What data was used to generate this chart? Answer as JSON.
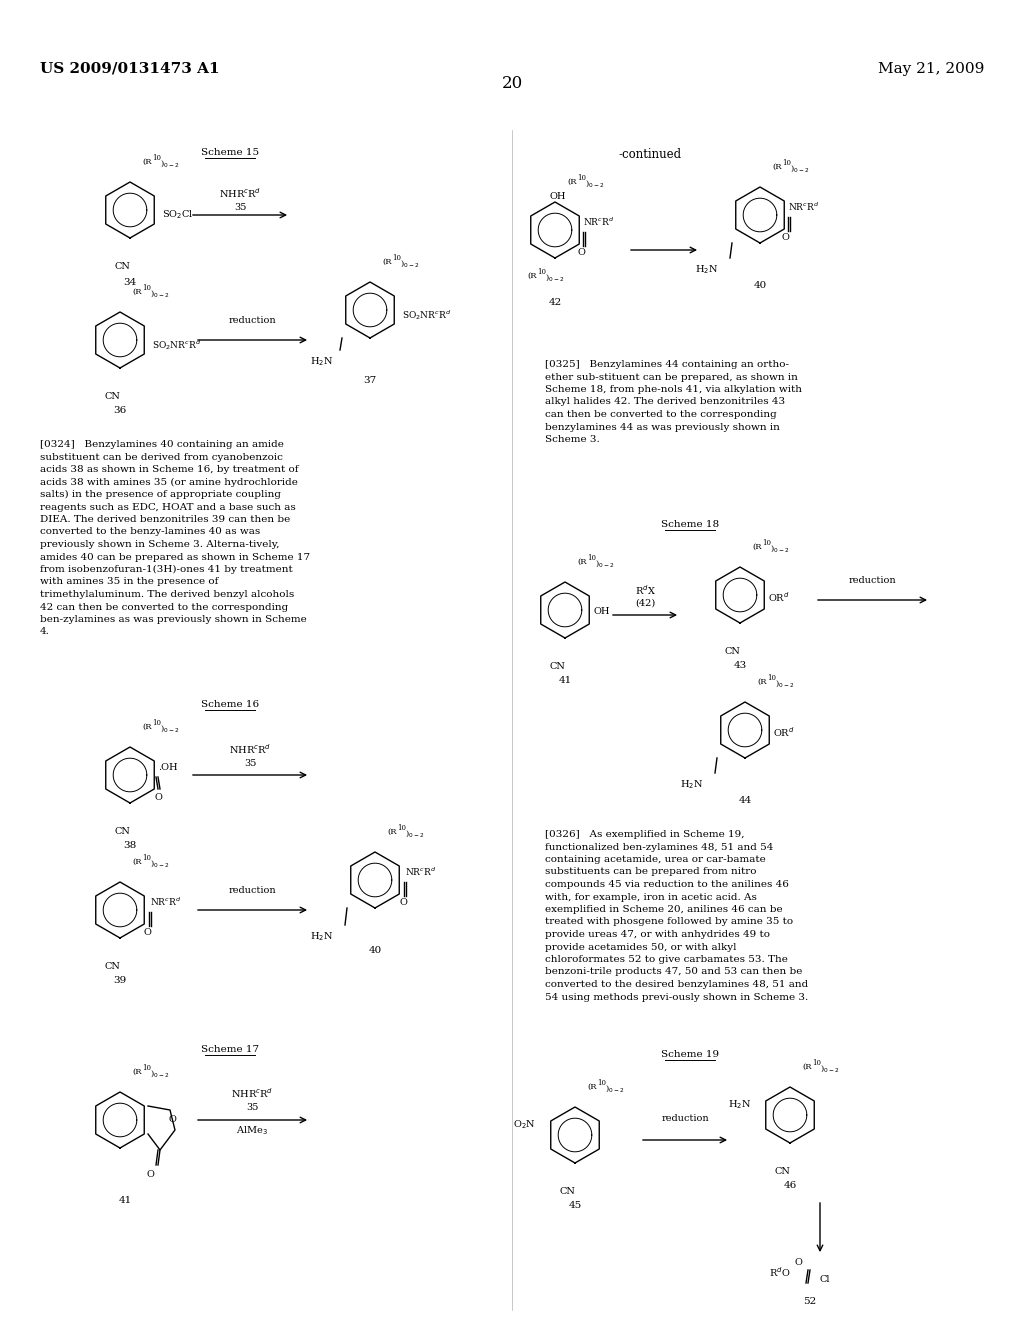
{
  "page_header_left": "US 2009/0131473 A1",
  "page_header_right": "May 21, 2009",
  "page_number": "20",
  "background_color": "#ffffff",
  "figsize": [
    10.24,
    13.2
  ],
  "dpi": 100,
  "continued_text": "-continued",
  "paragraph_0324": "[0324]   Benzylamines 40 containing an amide substituent can be derived from cyanobenzoic acids 38 as shown in Scheme 16, by treatment of acids 38 with amines 35 (or amine hydrochloride salts) in the presence of appropriate coupling reagents such as EDC, HOAT and a base such as DIEA. The derived benzonitriles 39 can then be converted to the benzy-lamines 40 as was previously shown in Scheme 3. Alterna-tively, amides 40 can be prepared as shown in Scheme 17 from isobenzofuran-1(3H)-ones 41 by treatment with amines 35 in the presence of trimethylaluminum. The derived benzyl alcohols 42 can then be converted to the corresponding ben-zylamines as was previously shown in Scheme 4.",
  "paragraph_0325": "[0325]   Benzylamines 44 containing an ortho-ether sub-stituent can be prepared, as shown in Scheme 18, from phe-nols 41, via alkylation with alkyl halides 42. The derived benzonitriles 43 can then be converted to the corresponding benzylamines 44 as was previously shown in Scheme 3.",
  "paragraph_0326": "[0326]   As exemplified in Scheme 19, functionalized ben-zylamines 48, 51 and 54 containing acetamide, urea or car-bamate substituents can be prepared from nitro compounds 45 via reduction to the anilines 46 with, for example, iron in acetic acid. As exemplified in Scheme 20, anilines 46 can be treated with phosgene followed by amine 35 to provide ureas 47, or with anhydrides 49 to provide acetamides 50, or with alkyl chloroformates 52 to give carbamates 53. The benzoni-trile products 47, 50 and 53 can then be converted to the desired benzylamines 48, 51 and 54 using methods previ-ously shown in Scheme 3."
}
